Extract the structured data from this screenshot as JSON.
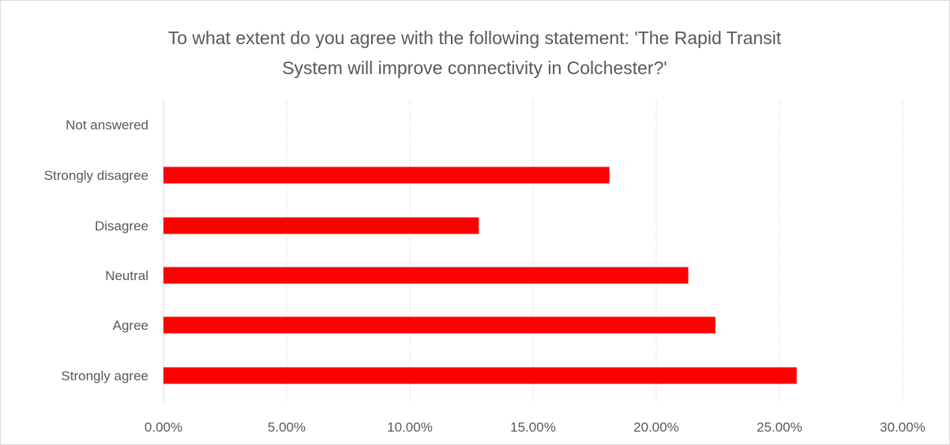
{
  "chart_data": {
    "type": "bar",
    "orientation": "horizontal",
    "title_lines": [
      "To what extent do you agree with the following statement: 'The Rapid Transit",
      "System will improve connectivity in Colchester?'"
    ],
    "categories": [
      "Not answered",
      "Strongly disagree",
      "Disagree",
      "Neutral",
      "Agree",
      "Strongly agree"
    ],
    "values": [
      0.0,
      18.1,
      12.8,
      21.3,
      22.4,
      25.7
    ],
    "value_unit": "%",
    "xlim": [
      0,
      30
    ],
    "xticks": [
      "0.00%",
      "5.00%",
      "10.00%",
      "15.00%",
      "20.00%",
      "25.00%",
      "30.00%"
    ],
    "xtick_values": [
      0,
      5,
      10,
      15,
      20,
      25,
      30
    ],
    "xlabel": "",
    "ylabel": "",
    "grid": "vertical",
    "legend": "none",
    "bar_color": "#ff0000",
    "grid_color": "#d9d9d9",
    "text_color": "#595959"
  }
}
